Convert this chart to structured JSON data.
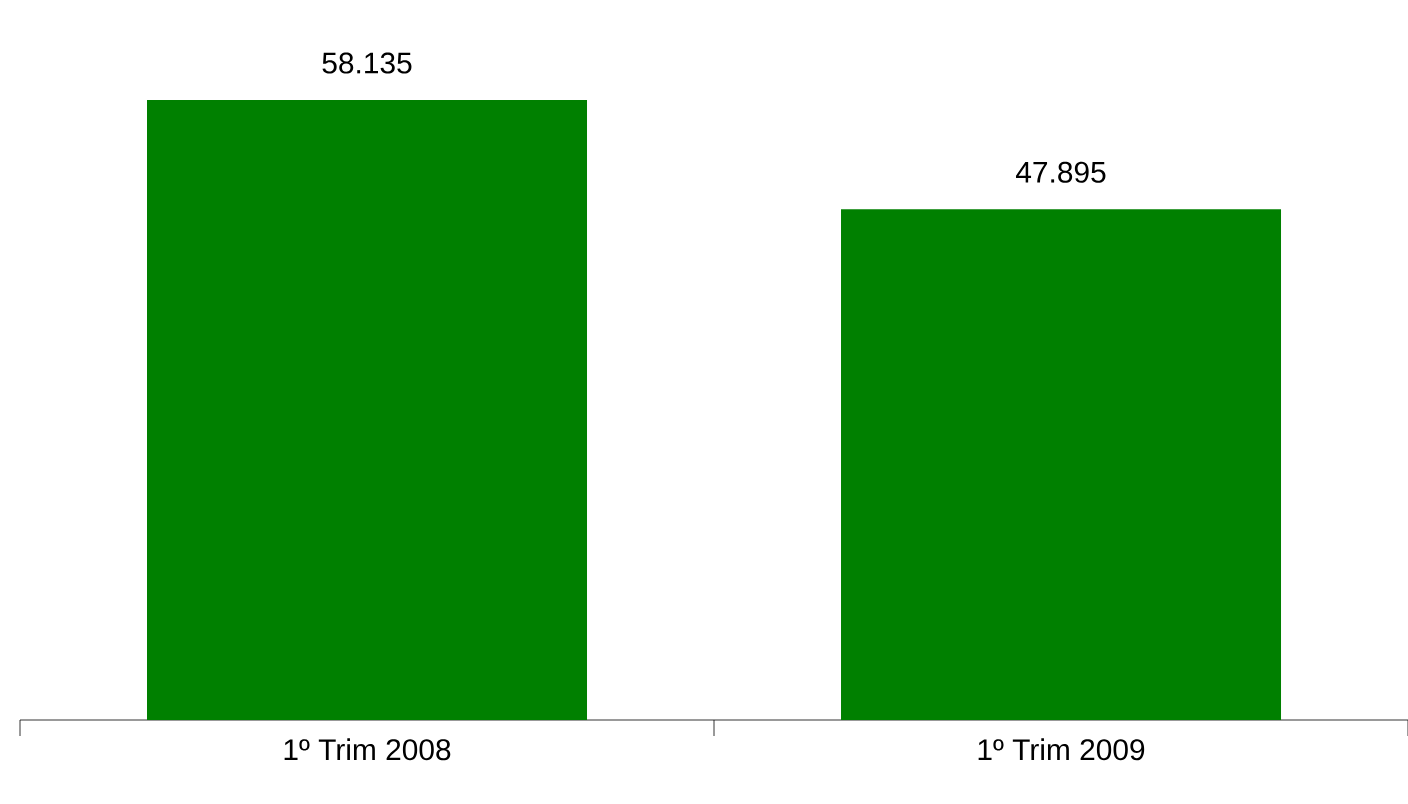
{
  "chart_data": {
    "type": "bar",
    "categories": [
      "1º Trim 2008",
      "1º Trim 2009"
    ],
    "values": [
      58135,
      47895
    ],
    "value_labels": [
      "58.135",
      "47.895"
    ],
    "color": "#008000"
  }
}
